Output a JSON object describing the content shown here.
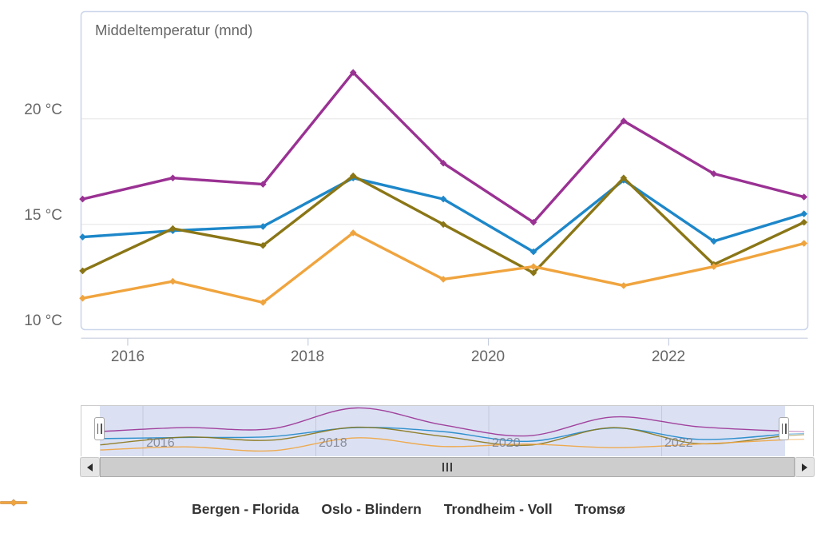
{
  "chart_data": {
    "type": "line",
    "title": "Middeltemperatur (mnd)",
    "x": [
      2015.5,
      2016.5,
      2017.5,
      2018.5,
      2019.5,
      2020.5,
      2021.5,
      2022.5,
      2023.5
    ],
    "xlim": [
      2015.48,
      2023.56
    ],
    "ylim": [
      10,
      25
    ],
    "x_tick_labels": [
      "2016",
      "2018",
      "2020",
      "2022"
    ],
    "y_tick_labels": [
      "20 °C",
      "15 °C",
      "10 °C"
    ],
    "y_unit": "°C",
    "grid": "horizontal",
    "legend_position": "bottom",
    "series": [
      {
        "name": "Bergen - Florida",
        "color": "#1d87c9",
        "values": [
          14.4,
          14.7,
          14.9,
          17.2,
          16.2,
          13.7,
          17.1,
          14.2,
          15.5
        ]
      },
      {
        "name": "Oslo - Blindern",
        "color": "#9a3193",
        "values": [
          16.2,
          17.2,
          16.9,
          22.2,
          17.9,
          15.1,
          19.9,
          17.4,
          16.3
        ]
      },
      {
        "name": "Trondheim - Voll",
        "color": "#8a7616",
        "values": [
          12.8,
          14.8,
          14.0,
          17.3,
          15.0,
          12.7,
          17.2,
          13.1,
          15.1
        ]
      },
      {
        "name": "Tromsø",
        "color": "#f0a43e",
        "values": [
          11.5,
          12.3,
          11.3,
          14.6,
          12.4,
          13.0,
          12.1,
          13.0,
          14.1
        ]
      }
    ]
  },
  "navigator": {
    "x_labels": [
      "2016",
      "2018",
      "2020",
      "2022"
    ],
    "selected_range": "full",
    "handle_icon": "double-vertical-bar"
  },
  "scrollbar": {
    "left_icon": "left-triangle",
    "right_icon": "right-triangle",
    "grip_icon": "triple-vertical-bar"
  },
  "colors": {
    "axis_text": "#666666",
    "legend_text": "#333333",
    "grid_line": "#e6e6e6",
    "plot_border": "#ccd6eb",
    "navigator_tint": "#dbe1f3",
    "navigator_outline": "#cccccc",
    "scrollbar_thumb": "#cdcdcd",
    "scrollbar_button": "#e6e6e6"
  }
}
